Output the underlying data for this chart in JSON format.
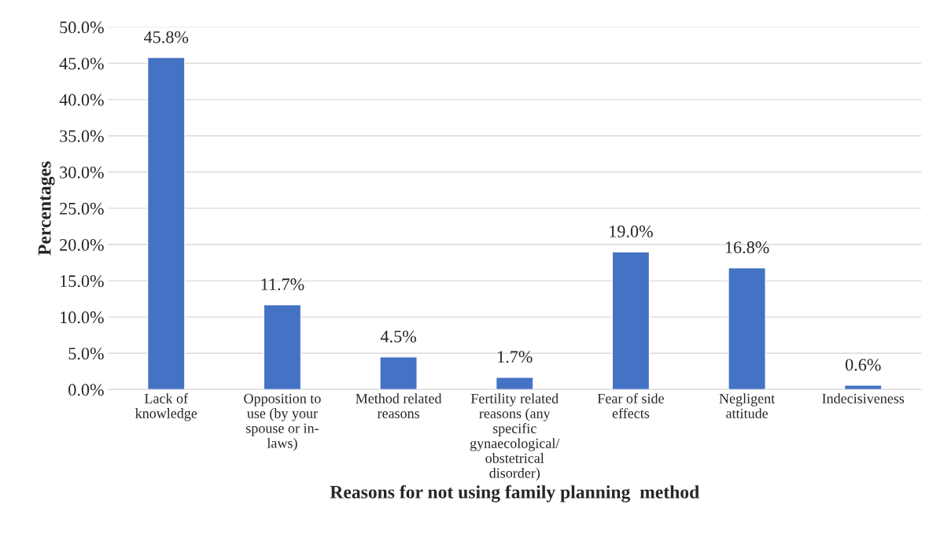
{
  "chart_data": {
    "type": "bar",
    "xlabel": "Reasons for not using family planning  method",
    "ylabel": "Percentages",
    "categories": [
      "Lack of\nknowledge",
      "Opposition to\nuse (by your\nspouse or in-\nlaws)",
      "Method related\nreasons",
      "Fertility related\nreasons (any\nspecific\ngynaecological/\nobstetrical\ndisorder)",
      "Fear of side\neffects",
      "Negligent\nattitude",
      "Indecisiveness"
    ],
    "values": [
      45.8,
      11.7,
      4.5,
      1.7,
      19.0,
      16.8,
      0.6
    ],
    "value_labels": [
      "45.8%",
      "11.7%",
      "4.5%",
      "1.7%",
      "19.0%",
      "16.8%",
      "0.6%"
    ],
    "color": "#4472c4",
    "ylim": [
      0,
      50
    ],
    "yticks": [
      {
        "value": 0,
        "label": "0.0%"
      },
      {
        "value": 5,
        "label": "5.0%"
      },
      {
        "value": 10,
        "label": "10.0%"
      },
      {
        "value": 15,
        "label": "15.0%"
      },
      {
        "value": 20,
        "label": "20.0%"
      },
      {
        "value": 25,
        "label": "25.0%"
      },
      {
        "value": 30,
        "label": "30.0%"
      },
      {
        "value": 35,
        "label": "35.0%"
      },
      {
        "value": 40,
        "label": "40.0%"
      },
      {
        "value": 45,
        "label": "45.0%"
      },
      {
        "value": 50,
        "label": "50.0%"
      }
    ],
    "grid": "y",
    "legend": false
  }
}
